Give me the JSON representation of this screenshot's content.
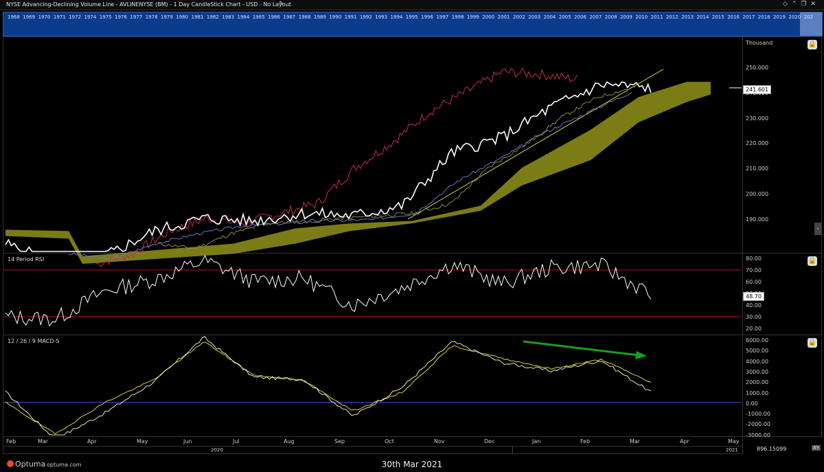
{
  "window": {
    "title": "NYSE Advancing-Declining Volume Line - AVLINENYSE (BM) - 1 Day CandleStick Chart - USD - No Layout",
    "edit_icon": "pencil-icon",
    "controls": [
      "diamond-icon",
      "chevron-up-icon",
      "window-restore-icon",
      "close-icon"
    ]
  },
  "timeline": {
    "years": [
      "1968",
      "1969",
      "1970",
      "1971",
      "1972",
      "1974",
      "1975",
      "1976",
      "1977",
      "1978",
      "1979",
      "1980",
      "1981",
      "1982",
      "1983",
      "1984",
      "1985",
      "1986",
      "1987",
      "1988",
      "1989",
      "1990",
      "1991",
      "1992",
      "1993",
      "1994",
      "1995",
      "1996",
      "1997",
      "1998",
      "1999",
      "2000",
      "2001",
      "2002",
      "2003",
      "2004",
      "2005",
      "2006",
      "2007",
      "2008",
      "2009",
      "2010",
      "2011",
      "2012",
      "2013",
      "2014",
      "2015",
      "2016",
      "2017",
      "2018",
      "2019",
      "2020",
      "202"
    ]
  },
  "panes": {
    "price": {
      "unit_label": "Thousand",
      "ticks": [
        "250.000",
        "240.000",
        "230.000",
        "220.000",
        "210.000",
        "200.000",
        "190.000"
      ],
      "last_value": "241.601"
    },
    "rsi": {
      "label": "14 Period RSI",
      "ticks": [
        "80.00",
        "70.00",
        "60.00",
        "50.00",
        "40.00",
        "30.00",
        "20.00"
      ],
      "last_value": "48.70"
    },
    "macd": {
      "label": "12 / 26 / 9 MACD-S",
      "ticks": [
        "6000.00",
        "5000.00",
        "4000.00",
        "3000.00",
        "2000.00",
        "1000.00",
        "0.00",
        "-1000.00",
        "-2000.00",
        "-3000.00"
      ]
    }
  },
  "xaxis": {
    "months": [
      "Feb",
      "Mar",
      "Apr",
      "May",
      "Jun",
      "Jul",
      "Aug",
      "Sep",
      "Oct",
      "Nov",
      "Dec",
      "Jan",
      "Feb",
      "Mar",
      "Apr",
      "May"
    ],
    "years": [
      "2020",
      "2021"
    ]
  },
  "scale_readout": "896.15099",
  "scale_readout_btn": "XY",
  "footer": {
    "brand": "Optuma",
    "url": "optuma.com",
    "date": "30th Mar 2021"
  },
  "colors": {
    "price_line": "#ffffff",
    "span_line": "#c0304a",
    "ma_blue": "#6a74c8",
    "ma_olive": "#8a8a3a",
    "cloud": "#8a8a1a",
    "trendline": "#cfd040",
    "rsi_bands": "#b01a1a",
    "macd_line": "#e8e8b0",
    "signal_line": "#d8d040",
    "zero_line": "#3a5ad8",
    "arrow": "#1aa01a"
  },
  "chart_data": [
    {
      "type": "line",
      "title": "NYSE Advancing-Declining Volume Line - AVLINENYSE (BM)",
      "ylabel": "Thousand",
      "ylim": [
        180,
        253
      ],
      "x": [
        "2020-02",
        "2020-03",
        "2020-04",
        "2020-05",
        "2020-06",
        "2020-07",
        "2020-08",
        "2020-09",
        "2020-10",
        "2020-11",
        "2020-12",
        "2021-01",
        "2021-02",
        "2021-03"
      ],
      "series": [
        {
          "values": [
            180,
            172,
            175,
            185,
            190,
            189,
            192,
            191,
            195,
            216,
            222,
            234,
            243,
            241.601
          ]
        }
      ]
    },
    {
      "type": "line",
      "title": "14 Period RSI",
      "ylim": [
        20,
        80
      ],
      "x": [
        "2020-02",
        "2020-03",
        "2020-04",
        "2020-05",
        "2020-06",
        "2020-07",
        "2020-08",
        "2020-09",
        "2020-10",
        "2020-11",
        "2020-12",
        "2021-01",
        "2021-02",
        "2021-03"
      ],
      "series": [
        {
          "values": [
            30,
            28,
            52,
            62,
            78,
            60,
            63,
            40,
            55,
            75,
            58,
            72,
            74,
            48.7
          ]
        }
      ],
      "reference_lines": [
        70,
        30
      ]
    },
    {
      "type": "line",
      "title": "12 / 26 / 9 MACD-S",
      "ylim": [
        -3000,
        6500
      ],
      "x": [
        "2020-02",
        "2020-03",
        "2020-04",
        "2020-05",
        "2020-06",
        "2020-07",
        "2020-08",
        "2020-09",
        "2020-10",
        "2020-11",
        "2020-12",
        "2021-01",
        "2021-02",
        "2021-03"
      ],
      "series": [
        {
          "values": [
            1000,
            -3500,
            -1000,
            2000,
            6200,
            2400,
            2200,
            -1300,
            1500,
            5800,
            3800,
            3000,
            4000,
            1000
          ]
        },
        {
          "values": [
            0,
            -3000,
            0,
            2200,
            5800,
            2600,
            2100,
            -800,
            1000,
            5400,
            4200,
            3200,
            4100,
            1900
          ]
        }
      ],
      "reference_lines": [
        0
      ]
    }
  ]
}
